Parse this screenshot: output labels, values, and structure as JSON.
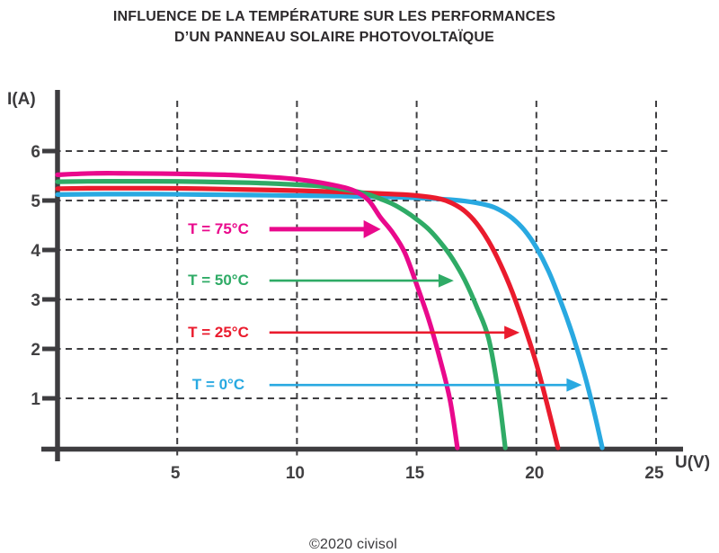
{
  "title": {
    "line1": "INFLUENCE DE LA TEMPÉRATURE SUR LES PERFORMANCES",
    "line2": "D’UN PANNEAU SOLAIRE PHOTOVOLTAÏQUE"
  },
  "footer": {
    "credit": "©2020 civisol"
  },
  "colors": {
    "magenta": "#e9098c",
    "green": "#2fab66",
    "red": "#ea1b2d",
    "blue": "#29a9e1",
    "axis": "#3e3d40",
    "tick_text": "#414042",
    "title_text": "#2d2a2c"
  },
  "chart_data": {
    "type": "line",
    "title": "INFLUENCE DE LA TEMPÉRATURE SUR LES PERFORMANCES D’UN PANNEAU SOLAIRE PHOTOVOLTAÏQUE",
    "xlabel": "U(V)",
    "ylabel": "I(A)",
    "xlim": [
      0,
      25.6
    ],
    "ylim": [
      0,
      7.2
    ],
    "x_ticks": [
      5,
      10,
      15,
      20,
      25
    ],
    "y_ticks": [
      1,
      2,
      3,
      4,
      5,
      6
    ],
    "grid": "dashed",
    "legend_position": "inside-left annotations with arrows",
    "series": [
      {
        "name": "T = 0°C",
        "color": "#29a9e1",
        "short_circuit_current_a": 5.12,
        "open_circuit_voltage_v": 22.75,
        "points": [
          [
            0,
            5.12
          ],
          [
            2,
            5.13
          ],
          [
            4,
            5.13
          ],
          [
            6,
            5.12
          ],
          [
            8,
            5.11
          ],
          [
            10,
            5.1
          ],
          [
            12,
            5.09
          ],
          [
            14,
            5.07
          ],
          [
            16,
            5.03
          ],
          [
            17,
            4.99
          ],
          [
            18,
            4.9
          ],
          [
            18.5,
            4.8
          ],
          [
            19,
            4.64
          ],
          [
            19.5,
            4.4
          ],
          [
            20,
            4.05
          ],
          [
            20.5,
            3.58
          ],
          [
            21,
            2.98
          ],
          [
            21.5,
            2.3
          ],
          [
            22,
            1.5
          ],
          [
            22.4,
            0.75
          ],
          [
            22.75,
            0
          ]
        ]
      },
      {
        "name": "T = 25°C",
        "color": "#ea1b2d",
        "short_circuit_current_a": 5.24,
        "open_circuit_voltage_v": 20.9,
        "points": [
          [
            0,
            5.24
          ],
          [
            2,
            5.25
          ],
          [
            4,
            5.25
          ],
          [
            6,
            5.24
          ],
          [
            8,
            5.22
          ],
          [
            10,
            5.2
          ],
          [
            12,
            5.17
          ],
          [
            14,
            5.13
          ],
          [
            15,
            5.1
          ],
          [
            16,
            5.03
          ],
          [
            16.5,
            4.94
          ],
          [
            17,
            4.79
          ],
          [
            17.5,
            4.54
          ],
          [
            18,
            4.18
          ],
          [
            18.5,
            3.71
          ],
          [
            19,
            3.14
          ],
          [
            19.5,
            2.46
          ],
          [
            20,
            1.7
          ],
          [
            20.45,
            0.88
          ],
          [
            20.9,
            0
          ]
        ]
      },
      {
        "name": "T = 50°C",
        "color": "#2fab66",
        "short_circuit_current_a": 5.38,
        "open_circuit_voltage_v": 18.7,
        "points": [
          [
            0,
            5.38
          ],
          [
            2,
            5.39
          ],
          [
            4,
            5.39
          ],
          [
            6,
            5.38
          ],
          [
            8,
            5.36
          ],
          [
            10,
            5.32
          ],
          [
            11,
            5.29
          ],
          [
            12,
            5.22
          ],
          [
            12.5,
            5.18
          ],
          [
            13,
            5.12
          ],
          [
            13.5,
            5.03
          ],
          [
            14,
            4.93
          ],
          [
            14.5,
            4.79
          ],
          [
            15,
            4.62
          ],
          [
            15.5,
            4.42
          ],
          [
            16,
            4.15
          ],
          [
            16.5,
            3.82
          ],
          [
            17,
            3.4
          ],
          [
            17.5,
            2.86
          ],
          [
            18,
            2.22
          ],
          [
            18.4,
            1.15
          ],
          [
            18.7,
            0
          ]
        ]
      },
      {
        "name": "T = 75°C",
        "color": "#e9098c",
        "short_circuit_current_a": 5.52,
        "open_circuit_voltage_v": 16.7,
        "points": [
          [
            0,
            5.52
          ],
          [
            1.5,
            5.55
          ],
          [
            3,
            5.55
          ],
          [
            5,
            5.54
          ],
          [
            7,
            5.52
          ],
          [
            9,
            5.47
          ],
          [
            10,
            5.43
          ],
          [
            11,
            5.36
          ],
          [
            12,
            5.26
          ],
          [
            12.5,
            5.17
          ],
          [
            13,
            5.0
          ],
          [
            13.5,
            4.65
          ],
          [
            14,
            4.35
          ],
          [
            14.5,
            3.95
          ],
          [
            15,
            3.3
          ],
          [
            15.5,
            2.6
          ],
          [
            16,
            1.75
          ],
          [
            16.4,
            0.95
          ],
          [
            16.7,
            0
          ]
        ]
      }
    ],
    "annotations": [
      {
        "text": "T = 75°C",
        "color": "#e9098c",
        "at_i": 4.42,
        "arrow_from_u": 8.85,
        "arrow_to_u": 13.5,
        "emphasis": true
      },
      {
        "text": "T = 50°C",
        "color": "#2fab66",
        "at_i": 3.38,
        "arrow_from_u": 8.85,
        "arrow_to_u": 16.55,
        "emphasis": false
      },
      {
        "text": "T = 25°C",
        "color": "#ea1b2d",
        "at_i": 2.33,
        "arrow_from_u": 8.85,
        "arrow_to_u": 19.3,
        "emphasis": false
      },
      {
        "text": "T = 0°C",
        "color": "#29a9e1",
        "at_i": 1.27,
        "arrow_from_u": 8.85,
        "arrow_to_u": 21.9,
        "emphasis": false
      }
    ]
  }
}
